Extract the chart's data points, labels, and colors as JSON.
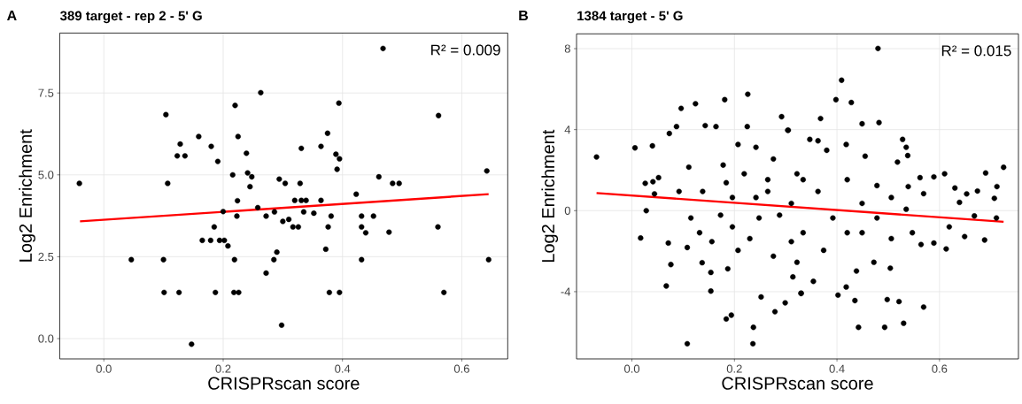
{
  "chart_data": [
    {
      "type": "scatter",
      "title": "389 target - rep 2 - 5' G",
      "xlabel": "CRISPRscan score",
      "ylabel": "Log2 Enrichment",
      "annotations": [
        "A",
        "R² = 0.009"
      ],
      "grid": true,
      "xlim": [
        -0.074,
        0.677
      ],
      "ylim": [
        -0.62,
        9.33
      ],
      "xticks": [
        {
          "value": 0,
          "label": "0.0"
        },
        0.2,
        0.4,
        0.6
      ],
      "yticks": [
        {
          "value": 0,
          "label": "0.0"
        },
        2.5,
        {
          "value": 5,
          "label": "5.0"
        },
        7.5
      ],
      "series": [
        {
          "type": "scatter",
          "marker": "circle",
          "color": "#000000",
          "x": [
            -0.041,
            0.046,
            0.1,
            0.101,
            0.104,
            0.107,
            0.123,
            0.128,
            0.136,
            0.126,
            0.147,
            0.159,
            0.165,
            0.179,
            0.18,
            0.185,
            0.187,
            0.191,
            0.194,
            0.202,
            0.2,
            0.208,
            0.216,
            0.219,
            0.218,
            0.22,
            0.223,
            0.224,
            0.225,
            0.226,
            0.239,
            0.241,
            0.245,
            0.248,
            0.258,
            0.263,
            0.272,
            0.272,
            0.285,
            0.286,
            0.29,
            0.294,
            0.298,
            0.3,
            0.304,
            0.31,
            0.317,
            0.32,
            0.326,
            0.329,
            0.331,
            0.331,
            0.335,
            0.339,
            0.352,
            0.364,
            0.364,
            0.372,
            0.375,
            0.376,
            0.378,
            0.381,
            0.389,
            0.391,
            0.394,
            0.395,
            0.395,
            0.423,
            0.432,
            0.432,
            0.432,
            0.439,
            0.452,
            0.461,
            0.468,
            0.478,
            0.484,
            0.495,
            0.56,
            0.561,
            0.57,
            0.642,
            0.645
          ],
          "values": [
            4.74,
            2.41,
            2.41,
            1.41,
            6.84,
            4.74,
            5.58,
            5.94,
            5.58,
            1.41,
            -0.17,
            6.17,
            3.0,
            3.0,
            5.87,
            3.41,
            1.41,
            5.41,
            3.0,
            3.0,
            3.88,
            2.83,
            5.0,
            2.41,
            1.41,
            7.12,
            3.74,
            4.21,
            6.17,
            1.41,
            5.66,
            5.06,
            4.64,
            4.94,
            4.0,
            7.51,
            3.74,
            2.0,
            2.41,
            3.87,
            2.64,
            4.87,
            0.41,
            3.58,
            4.74,
            3.64,
            3.41,
            4.22,
            3.41,
            4.74,
            5.81,
            4.22,
            3.87,
            4.22,
            3.83,
            5.87,
            4.22,
            2.73,
            6.27,
            3.41,
            1.41,
            3.74,
            5.63,
            5.17,
            7.19,
            5.49,
            1.41,
            4.41,
            3.74,
            3.41,
            2.41,
            3.23,
            3.74,
            4.94,
            8.86,
            3.25,
            4.74,
            4.74,
            3.41,
            6.81,
            1.41,
            5.12,
            2.41
          ]
        },
        {
          "type": "line",
          "color": "#ff0000",
          "x": [
            -0.04,
            0.645
          ],
          "values": [
            3.58,
            4.41
          ]
        }
      ]
    },
    {
      "type": "scatter",
      "title": "1384 target - 5' G",
      "xlabel": "CRISPRscan score",
      "ylabel": "Log2 Enrichment",
      "annotations": [
        "B",
        "R² = 0.015"
      ],
      "grid": true,
      "xlim": [
        -0.108,
        0.754
      ],
      "ylim": [
        -7.32,
        8.73
      ],
      "xticks": [
        {
          "value": 0,
          "label": "0.0"
        },
        0.2,
        0.4,
        0.6
      ],
      "yticks": [
        -4,
        0,
        4,
        8
      ],
      "series": [
        {
          "type": "scatter",
          "marker": "circle",
          "color": "#000000",
          "x": [
            -0.069,
            0.006,
            0.017,
            0.026,
            0.028,
            0.041,
            0.04,
            0.052,
            0.044,
            0.067,
            0.071,
            0.076,
            0.073,
            0.087,
            0.096,
            0.108,
            0.108,
            0.124,
            0.111,
            0.143,
            0.137,
            0.154,
            0.154,
            0.164,
            0.181,
            0.184,
            0.194,
            0.187,
            0.226,
            0.225,
            0.237,
            0.236,
            0.252,
            0.279,
            0.299,
            0.292,
            0.304,
            0.242,
            0.207,
            0.184,
            0.173,
            0.156,
            0.132,
            0.115,
            0.092,
            0.219,
            0.276,
            0.265,
            0.248,
            0.23,
            0.207,
            0.276,
            0.311,
            0.322,
            0.311,
            0.196,
            0.138,
            0.178,
            0.288,
            0.242,
            0.265,
            0.196,
            0.33,
            0.48,
            0.409,
            0.398,
            0.428,
            0.368,
            0.449,
            0.482,
            0.305,
            0.347,
            0.363,
            0.418,
            0.528,
            0.535,
            0.538,
            0.518,
            0.455,
            0.38,
            0.725,
            0.69,
            0.712,
            0.707,
            0.711,
            0.688,
            0.649,
            0.674,
            0.653,
            0.63,
            0.61,
            0.589,
            0.562,
            0.569,
            0.539,
            0.639,
            0.668,
            0.619,
            0.613,
            0.589,
            0.564,
            0.569,
            0.53,
            0.521,
            0.498,
            0.493,
            0.442,
            0.435,
            0.402,
            0.418,
            0.504,
            0.33,
            0.354,
            0.314,
            0.472,
            0.506,
            0.547,
            0.535,
            0.478,
            0.449,
            0.42,
            0.392,
            0.363,
            0.334,
            0.42,
            0.478,
            0.374,
            0.438,
            0.334,
            0.322,
            0.506,
            0.449
          ],
          "values": [
            2.65,
            3.1,
            -1.35,
            1.35,
            0,
            1.43,
            3.2,
            1.63,
            0.83,
            -3.72,
            -1.6,
            -2.66,
            3.81,
            4.15,
            5.05,
            -1.82,
            -6.57,
            5.28,
            2.15,
            4.2,
            -2.57,
            -3.97,
            -3.05,
            4.15,
            5.48,
            -5.35,
            -5.16,
            -2.87,
            5.75,
            4.15,
            -5.76,
            -6.57,
            -4.26,
            -4.99,
            -4.55,
            4.64,
            3.97,
            3.13,
            3.27,
            1.38,
            -0.22,
            -1.53,
            -1.09,
            -0.36,
            0.95,
            1.82,
            2.55,
            0.95,
            -0.36,
            -1.38,
            -1.96,
            -2.25,
            -1.53,
            1.82,
            0.36,
            0.65,
            0.95,
            2.25,
            -0.22,
            0.65,
            1.53,
            -0.8,
            -4.07,
            8.01,
            6.44,
            5.48,
            5.34,
            4.55,
            4.29,
            4.35,
            3.97,
            3.52,
            3.45,
            3.27,
            3.52,
            3.13,
            2.72,
            2.4,
            2.69,
            2.98,
            2.14,
            1.86,
            1.19,
            0.61,
            -0.36,
            -1.45,
            -1.28,
            0.97,
            0.83,
            1.12,
            1.82,
            1.67,
            1.63,
            0.84,
            1.19,
            0.41,
            -0.26,
            -0.8,
            -1.89,
            -1.6,
            -1.67,
            -4.76,
            -5.56,
            -4.49,
            -4.39,
            -5.76,
            -5.76,
            -4.44,
            -4.17,
            -3.77,
            -2.84,
            -4.09,
            -3.49,
            -3.27,
            -2.55,
            -1.38,
            -1.09,
            0.07,
            -0.36,
            0.36,
            -1.09,
            -0.36,
            0.95,
            1.53,
            1.53,
            1.24,
            -1.96,
            -2.98,
            -1.09,
            -2.55,
            0.65,
            -1.09
          ]
        },
        {
          "type": "line",
          "color": "#ff0000",
          "x": [
            -0.069,
            0.725
          ],
          "values": [
            0.87,
            -0.55
          ]
        }
      ]
    }
  ]
}
